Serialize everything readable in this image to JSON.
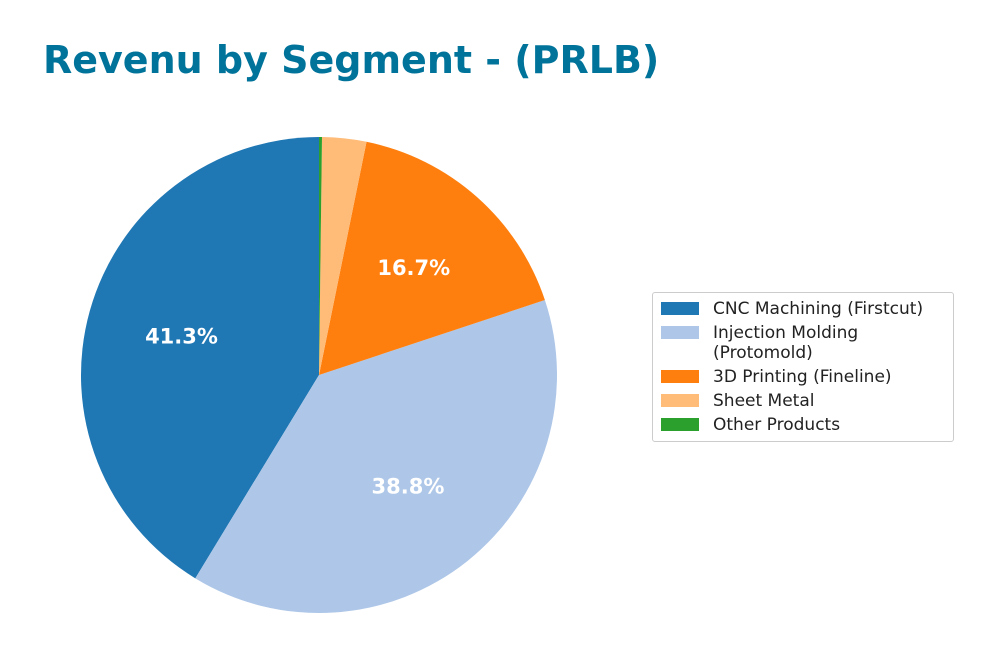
{
  "chart_data": {
    "type": "pie",
    "title": "Revenu by Segment - (PRLB)",
    "start_angle_deg": 90,
    "direction": "counterclockwise",
    "slices": [
      {
        "label": "CNC Machining (Firstcut)",
        "value": 41.3,
        "pct_label": "41.3%",
        "color": "#1f77b4",
        "text_color": "#ffffff"
      },
      {
        "label": "Injection Molding (Protomold)",
        "value": 38.8,
        "pct_label": "38.8%",
        "color": "#aec7e8",
        "text_color": "#ffffff"
      },
      {
        "label": "3D Printing (Fineline)",
        "value": 16.7,
        "pct_label": "16.7%",
        "color": "#ff7f0e",
        "text_color": "#ffffff"
      },
      {
        "label": "Sheet Metal",
        "value": 3.0,
        "pct_label": "",
        "color": "#ffbb78"
      },
      {
        "label": "Other Products",
        "value": 0.2,
        "pct_label": "",
        "color": "#2ca02c"
      }
    ],
    "legend_position": "right"
  }
}
